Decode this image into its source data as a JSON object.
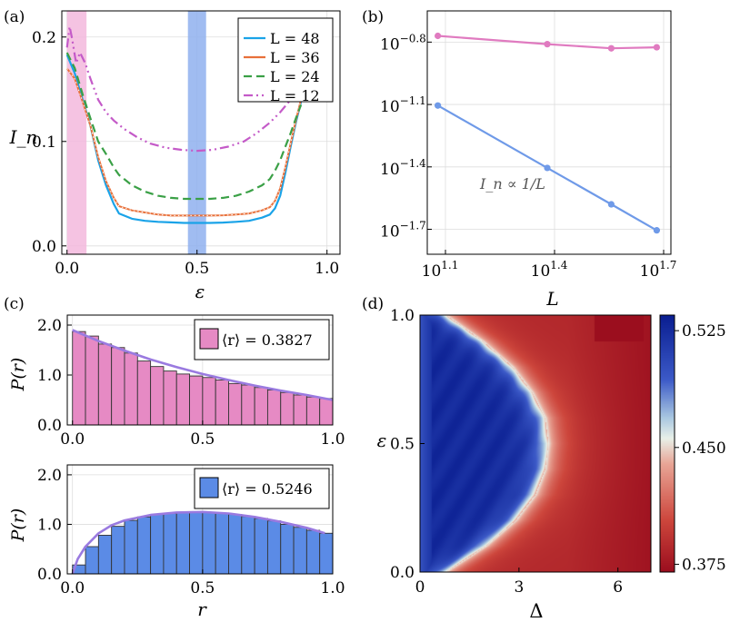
{
  "panels": {
    "a": {
      "label": "(a)",
      "xlabel": "ε",
      "ylabel": "I_n",
      "xticks": [
        "0.0",
        "0.5",
        "1.0"
      ],
      "yticks": [
        "0.0",
        "0.1",
        "0.2"
      ]
    },
    "b": {
      "label": "(b)",
      "xlabel": "L",
      "annotation": "I_n ∝ 1/L",
      "xtick_base": "10",
      "xticks_exp": [
        "1.1",
        "1.4",
        "1.7"
      ],
      "ytick_base": "10",
      "yticks_exp": [
        "−0.8",
        "−1.1",
        "−1.4",
        "−1.7"
      ]
    },
    "c": {
      "label": "(c)",
      "ylabel": "P(r)",
      "xlabel": "r",
      "xticks": [
        "0.0",
        "0.5",
        "1.0"
      ],
      "yticks": [
        "0.0",
        "1.0",
        "2.0"
      ],
      "top_legend": "⟨r⟩ = 0.3827",
      "bottom_legend": "⟨r⟩ = 0.5246"
    },
    "d": {
      "label": "(d)",
      "xlabel": "Δ",
      "ylabel": "ε",
      "xticks": [
        "0",
        "3",
        "6"
      ],
      "yticks": [
        "0.0",
        "0.5",
        "1.0"
      ],
      "colorbar_ticks": [
        "0.525",
        "0.450",
        "0.375"
      ]
    }
  },
  "colors": {
    "L48": "#1aa3e8",
    "L36": "#e8703a",
    "L24": "#3aa046",
    "L12": "#c45ac8",
    "pink_band": "#f3b8dd",
    "blue_band": "#8fb0ee",
    "b_top": "#e07bc0",
    "b_bottom": "#6f9ae8",
    "hist_pink": "#e68ac4",
    "hist_blue": "#5b8be6",
    "fit_line": "#9a7ae0"
  },
  "chart_data": [
    {
      "type": "line",
      "panel": "a",
      "title": "",
      "xlabel": "ε",
      "ylabel": "I_n",
      "xlim": [
        -0.02,
        1.05
      ],
      "ylim": [
        -0.008,
        0.225
      ],
      "shaded_bands": [
        {
          "x": [
            0.0,
            0.075
          ],
          "color": "pink"
        },
        {
          "x": [
            0.465,
            0.535
          ],
          "color": "blue"
        }
      ],
      "legend": [
        "L = 48",
        "L = 36",
        "L = 24",
        "L = 12"
      ],
      "series": [
        {
          "name": "L = 48",
          "x": [
            0.0,
            0.03,
            0.06,
            0.09,
            0.12,
            0.15,
            0.18,
            0.2,
            0.25,
            0.3,
            0.35,
            0.4,
            0.45,
            0.5,
            0.55,
            0.6,
            0.65,
            0.7,
            0.75,
            0.78,
            0.8,
            0.82,
            0.84,
            0.86,
            0.88,
            0.9
          ],
          "y": [
            0.183,
            0.165,
            0.14,
            0.115,
            0.082,
            0.058,
            0.04,
            0.031,
            0.026,
            0.024,
            0.023,
            0.0225,
            0.022,
            0.022,
            0.022,
            0.0223,
            0.023,
            0.024,
            0.027,
            0.03,
            0.036,
            0.048,
            0.07,
            0.095,
            0.118,
            0.138
          ]
        },
        {
          "name": "L = 36",
          "x": [
            0.0,
            0.03,
            0.06,
            0.09,
            0.12,
            0.15,
            0.18,
            0.2,
            0.25,
            0.3,
            0.35,
            0.4,
            0.45,
            0.5,
            0.55,
            0.6,
            0.65,
            0.7,
            0.75,
            0.78,
            0.8,
            0.82,
            0.84,
            0.86,
            0.88,
            0.9
          ],
          "y": [
            0.17,
            0.16,
            0.138,
            0.115,
            0.085,
            0.062,
            0.046,
            0.038,
            0.034,
            0.032,
            0.03,
            0.029,
            0.029,
            0.029,
            0.029,
            0.0293,
            0.03,
            0.031,
            0.034,
            0.037,
            0.043,
            0.055,
            0.075,
            0.098,
            0.12,
            0.14
          ]
        },
        {
          "name": "L = 24",
          "x": [
            0.0,
            0.03,
            0.06,
            0.09,
            0.12,
            0.15,
            0.18,
            0.2,
            0.25,
            0.3,
            0.35,
            0.4,
            0.45,
            0.5,
            0.55,
            0.6,
            0.65,
            0.7,
            0.75,
            0.78,
            0.8,
            0.82,
            0.84,
            0.86,
            0.88,
            0.9
          ],
          "y": [
            0.185,
            0.17,
            0.145,
            0.122,
            0.1,
            0.088,
            0.075,
            0.068,
            0.058,
            0.052,
            0.048,
            0.046,
            0.045,
            0.045,
            0.045,
            0.046,
            0.048,
            0.052,
            0.058,
            0.064,
            0.072,
            0.082,
            0.095,
            0.108,
            0.122,
            0.135
          ]
        },
        {
          "name": "L = 12",
          "x": [
            0.0,
            0.01,
            0.02,
            0.035,
            0.05,
            0.07,
            0.09,
            0.12,
            0.15,
            0.18,
            0.22,
            0.27,
            0.32,
            0.38,
            0.44,
            0.5,
            0.56,
            0.62,
            0.68,
            0.73,
            0.78,
            0.82,
            0.86,
            0.89,
            0.92,
            0.95
          ],
          "y": [
            0.19,
            0.21,
            0.198,
            0.175,
            0.185,
            0.175,
            0.16,
            0.14,
            0.128,
            0.12,
            0.112,
            0.104,
            0.098,
            0.094,
            0.092,
            0.091,
            0.092,
            0.095,
            0.1,
            0.108,
            0.118,
            0.128,
            0.14,
            0.152,
            0.165,
            0.178
          ]
        }
      ]
    },
    {
      "type": "line",
      "panel": "b",
      "xscale": "log10",
      "yscale": "log10",
      "xlabel": "L",
      "xlim_log10": [
        1.05,
        1.72
      ],
      "ylim_log10": [
        -1.82,
        -0.65
      ],
      "series": [
        {
          "name": "top",
          "log10_L": [
            1.079,
            1.38,
            1.556,
            1.681
          ],
          "log10_y": [
            -0.77,
            -0.81,
            -0.83,
            -0.825
          ]
        },
        {
          "name": "bottom",
          "log10_L": [
            1.079,
            1.38,
            1.556,
            1.681
          ],
          "log10_y": [
            -1.105,
            -1.405,
            -1.58,
            -1.705
          ]
        }
      ]
    },
    {
      "type": "bar",
      "panel": "c-top",
      "xlabel": "",
      "ylabel": "P(r)",
      "xlim": [
        -0.02,
        1.0
      ],
      "ylim": [
        0,
        2.2
      ],
      "bin_width": 0.05,
      "bin_starts": [
        0.0,
        0.05,
        0.1,
        0.15,
        0.2,
        0.25,
        0.3,
        0.35,
        0.4,
        0.45,
        0.5,
        0.55,
        0.6,
        0.65,
        0.7,
        0.75,
        0.8,
        0.85,
        0.9,
        0.95
      ],
      "values": [
        1.87,
        1.78,
        1.62,
        1.55,
        1.44,
        1.28,
        1.17,
        1.08,
        1.02,
        0.98,
        0.95,
        0.9,
        0.83,
        0.8,
        0.75,
        0.7,
        0.65,
        0.6,
        0.56,
        0.53
      ],
      "fit_curve": {
        "x": [
          0.0,
          0.1,
          0.2,
          0.3,
          0.4,
          0.5,
          0.6,
          0.7,
          0.8,
          0.9,
          1.0
        ],
        "y": [
          1.9,
          1.68,
          1.49,
          1.31,
          1.16,
          1.02,
          0.9,
          0.79,
          0.69,
          0.6,
          0.5
        ]
      },
      "legend": "⟨r⟩ = 0.3827"
    },
    {
      "type": "bar",
      "panel": "c-bottom",
      "xlabel": "r",
      "ylabel": "P(r)",
      "xlim": [
        -0.02,
        1.0
      ],
      "ylim": [
        0,
        2.2
      ],
      "bin_width": 0.05,
      "bin_starts": [
        0.0,
        0.05,
        0.1,
        0.15,
        0.2,
        0.25,
        0.3,
        0.35,
        0.4,
        0.45,
        0.5,
        0.55,
        0.6,
        0.65,
        0.7,
        0.75,
        0.8,
        0.85,
        0.9,
        0.95
      ],
      "values": [
        0.18,
        0.55,
        0.78,
        0.96,
        1.08,
        1.15,
        1.2,
        1.22,
        1.24,
        1.25,
        1.24,
        1.22,
        1.2,
        1.16,
        1.12,
        1.07,
        1.0,
        0.94,
        0.88,
        0.82
      ],
      "fit_curve": {
        "x": [
          0.0,
          0.02,
          0.05,
          0.1,
          0.15,
          0.2,
          0.3,
          0.4,
          0.5,
          0.6,
          0.7,
          0.8,
          0.9,
          0.97
        ],
        "y": [
          0.0,
          0.3,
          0.55,
          0.82,
          0.98,
          1.08,
          1.19,
          1.24,
          1.25,
          1.22,
          1.15,
          1.05,
          0.93,
          0.82
        ]
      },
      "legend": "⟨r⟩ = 0.5246"
    },
    {
      "type": "heatmap",
      "panel": "d",
      "xlabel": "Δ",
      "ylabel": "ε",
      "xlim": [
        0,
        7
      ],
      "ylim": [
        0,
        1
      ],
      "color_range": [
        0.37,
        0.535
      ],
      "colorbar_ticks": [
        0.525,
        0.45,
        0.375
      ],
      "boundary_curve": {
        "eps": [
          0.0,
          0.1,
          0.2,
          0.3,
          0.4,
          0.5,
          0.6,
          0.7,
          0.8,
          0.9,
          1.0
        ],
        "delta": [
          0.8,
          2.0,
          2.9,
          3.5,
          3.8,
          3.9,
          3.8,
          3.4,
          2.8,
          1.9,
          0.8
        ]
      }
    }
  ]
}
